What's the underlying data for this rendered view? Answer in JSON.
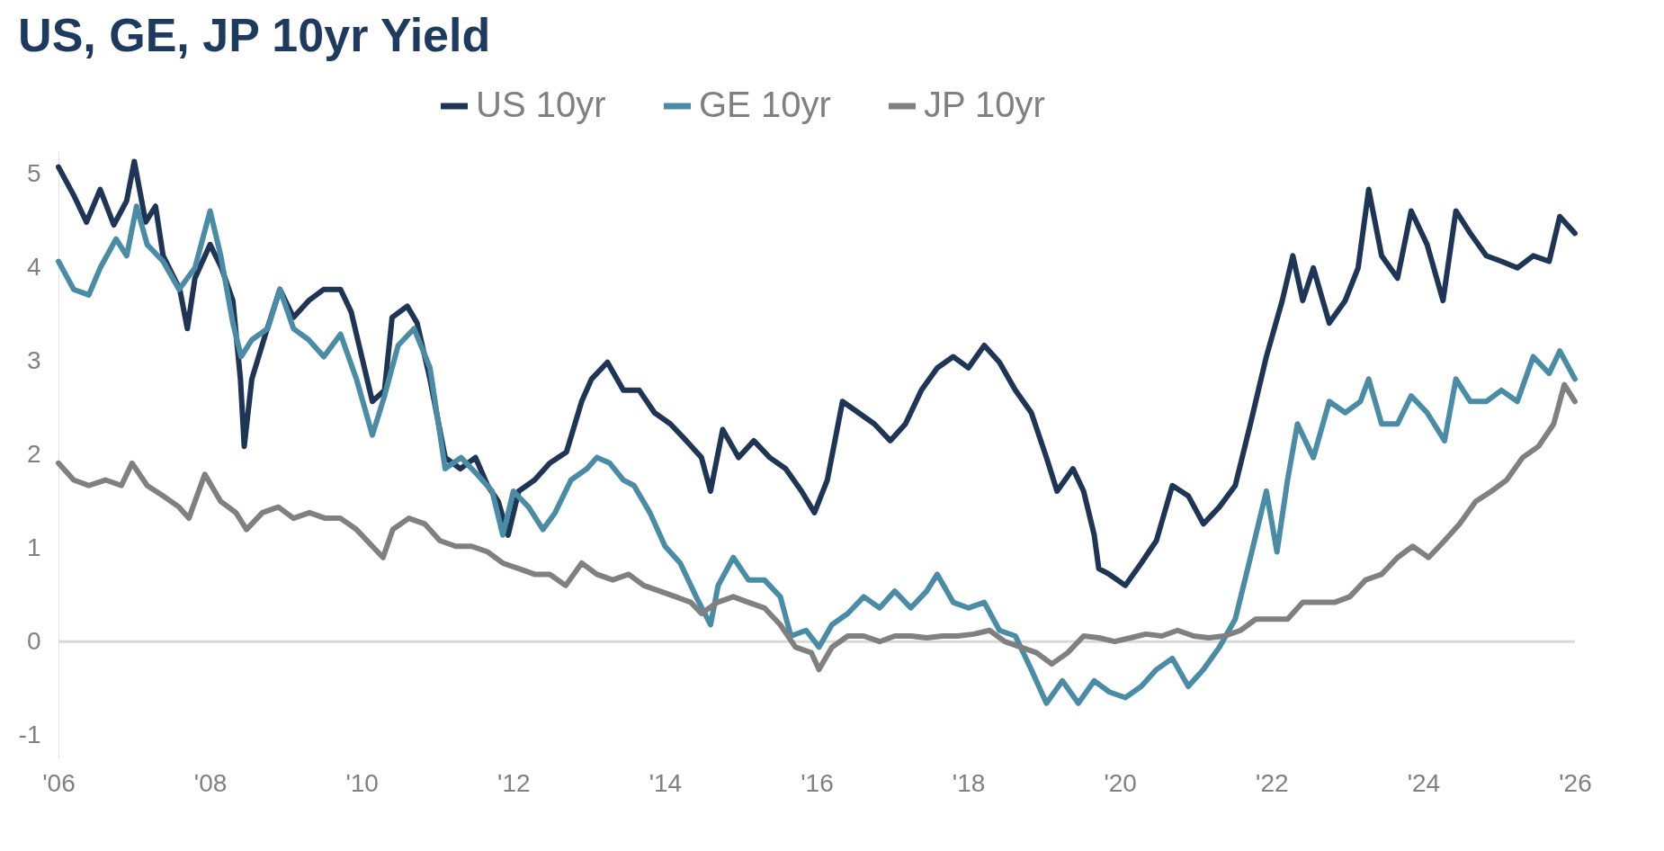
{
  "chart_data": {
    "type": "line",
    "title": "US, GE, JP 10yr Yield",
    "xlim": [
      2006,
      2026
    ],
    "ylim": [
      -1.25,
      5.25
    ],
    "xticks": [
      {
        "value": 2006,
        "label": "'06"
      },
      {
        "value": 2008,
        "label": "'08"
      },
      {
        "value": 2010,
        "label": "'10"
      },
      {
        "value": 2012,
        "label": "'12"
      },
      {
        "value": 2014,
        "label": "'14"
      },
      {
        "value": 2016,
        "label": "'16"
      },
      {
        "value": 2018,
        "label": "'18"
      },
      {
        "value": 2020,
        "label": "'20"
      },
      {
        "value": 2022,
        "label": "'22"
      },
      {
        "value": 2024,
        "label": "'24"
      },
      {
        "value": 2026,
        "label": "'26"
      }
    ],
    "yticks": [
      -1,
      0,
      1,
      2,
      3,
      4,
      5
    ],
    "grid": false,
    "legend": "top",
    "marker": "none",
    "line_style": "solid",
    "ref_lines": [
      {
        "axis": "y",
        "value": 0,
        "color": "#d9d9d9"
      }
    ],
    "series": [
      {
        "name": "US 10yr",
        "color": "#1f3556",
        "x": [
          2006.0,
          2006.2,
          2006.37,
          2006.55,
          2006.73,
          2006.9,
          2007.0,
          2007.15,
          2007.28,
          2007.38,
          2007.6,
          2007.7,
          2007.8,
          2008.0,
          2008.15,
          2008.3,
          2008.4,
          2008.45,
          2008.55,
          2008.73,
          2008.92,
          2009.1,
          2009.3,
          2009.5,
          2009.72,
          2009.86,
          2010.0,
          2010.14,
          2010.3,
          2010.4,
          2010.6,
          2010.73,
          2010.9,
          2011.1,
          2011.3,
          2011.5,
          2011.66,
          2011.8,
          2011.93,
          2012.07,
          2012.28,
          2012.48,
          2012.7,
          2012.9,
          2013.03,
          2013.24,
          2013.45,
          2013.66,
          2013.86,
          2014.07,
          2014.28,
          2014.48,
          2014.6,
          2014.76,
          2014.97,
          2015.17,
          2015.38,
          2015.59,
          2015.8,
          2015.97,
          2016.14,
          2016.34,
          2016.55,
          2016.76,
          2016.97,
          2017.17,
          2017.38,
          2017.59,
          2017.8,
          2018.0,
          2018.21,
          2018.41,
          2018.62,
          2018.83,
          2019.03,
          2019.17,
          2019.38,
          2019.52,
          2019.66,
          2019.72,
          2019.86,
          2020.07,
          2020.28,
          2020.48,
          2020.69,
          2020.9,
          2021.1,
          2021.31,
          2021.52,
          2021.72,
          2021.93,
          2022.14,
          2022.28,
          2022.41,
          2022.55,
          2022.76,
          2022.97,
          2023.14,
          2023.28,
          2023.45,
          2023.66,
          2023.84,
          2024.05,
          2024.26,
          2024.43,
          2024.62,
          2024.83,
          2025.03,
          2025.24,
          2025.45,
          2025.66,
          2025.8,
          2026.0
        ],
        "values": [
          5.08,
          4.78,
          4.49,
          4.84,
          4.46,
          4.72,
          5.14,
          4.49,
          4.66,
          4.13,
          3.77,
          3.35,
          3.89,
          4.25,
          4.0,
          3.65,
          2.81,
          2.09,
          2.81,
          3.29,
          3.77,
          3.47,
          3.65,
          3.77,
          3.77,
          3.53,
          3.05,
          2.57,
          2.69,
          3.47,
          3.59,
          3.41,
          2.81,
          1.97,
          1.85,
          1.97,
          1.67,
          1.5,
          1.14,
          1.61,
          1.73,
          1.91,
          2.03,
          2.57,
          2.81,
          2.99,
          2.69,
          2.69,
          2.45,
          2.33,
          2.15,
          1.97,
          1.61,
          2.27,
          1.97,
          2.15,
          1.97,
          1.85,
          1.61,
          1.38,
          1.73,
          2.57,
          2.45,
          2.33,
          2.15,
          2.33,
          2.69,
          2.93,
          3.05,
          2.93,
          3.17,
          2.99,
          2.69,
          2.45,
          1.97,
          1.61,
          1.85,
          1.61,
          1.14,
          0.78,
          0.72,
          0.6,
          0.84,
          1.08,
          1.67,
          1.56,
          1.26,
          1.44,
          1.67,
          2.33,
          3.05,
          3.65,
          4.13,
          3.65,
          4.0,
          3.41,
          3.65,
          4.0,
          4.84,
          4.13,
          3.89,
          4.61,
          4.25,
          3.65,
          4.61,
          4.37,
          4.13,
          4.07,
          4.0,
          4.13,
          4.07,
          4.55,
          4.37
        ]
      },
      {
        "name": "GE 10yr",
        "color": "#4a8ca5",
        "x": [
          2006.0,
          2006.2,
          2006.4,
          2006.55,
          2006.76,
          2006.9,
          2007.03,
          2007.17,
          2007.38,
          2007.59,
          2007.8,
          2008.0,
          2008.14,
          2008.3,
          2008.41,
          2008.55,
          2008.76,
          2008.92,
          2009.1,
          2009.3,
          2009.5,
          2009.72,
          2009.93,
          2010.14,
          2010.3,
          2010.48,
          2010.69,
          2010.9,
          2011.1,
          2011.31,
          2011.52,
          2011.72,
          2011.86,
          2012.0,
          2012.2,
          2012.39,
          2012.55,
          2012.76,
          2012.97,
          2013.1,
          2013.27,
          2013.45,
          2013.59,
          2013.8,
          2014.0,
          2014.2,
          2014.41,
          2014.6,
          2014.7,
          2014.9,
          2015.1,
          2015.31,
          2015.52,
          2015.66,
          2015.86,
          2016.03,
          2016.2,
          2016.41,
          2016.62,
          2016.83,
          2017.03,
          2017.24,
          2017.45,
          2017.59,
          2017.8,
          2018.0,
          2018.21,
          2018.41,
          2018.62,
          2018.83,
          2019.03,
          2019.24,
          2019.45,
          2019.66,
          2019.86,
          2020.07,
          2020.28,
          2020.48,
          2020.69,
          2020.9,
          2021.1,
          2021.31,
          2021.52,
          2021.72,
          2021.93,
          2022.07,
          2022.21,
          2022.34,
          2022.55,
          2022.76,
          2022.97,
          2023.17,
          2023.28,
          2023.45,
          2023.66,
          2023.84,
          2024.05,
          2024.28,
          2024.43,
          2024.62,
          2024.83,
          2025.03,
          2025.24,
          2025.45,
          2025.66,
          2025.8,
          2026.0
        ],
        "values": [
          4.07,
          3.77,
          3.71,
          4.0,
          4.31,
          4.13,
          4.66,
          4.25,
          4.07,
          3.77,
          4.0,
          4.61,
          4.13,
          3.41,
          3.05,
          3.23,
          3.35,
          3.77,
          3.35,
          3.23,
          3.05,
          3.29,
          2.81,
          2.21,
          2.63,
          3.17,
          3.35,
          2.93,
          1.85,
          1.97,
          1.79,
          1.61,
          1.14,
          1.61,
          1.44,
          1.2,
          1.38,
          1.73,
          1.85,
          1.97,
          1.91,
          1.73,
          1.67,
          1.38,
          1.02,
          0.84,
          0.48,
          0.18,
          0.6,
          0.9,
          0.66,
          0.66,
          0.48,
          0.06,
          0.12,
          -0.06,
          0.18,
          0.3,
          0.48,
          0.36,
          0.54,
          0.36,
          0.54,
          0.72,
          0.42,
          0.36,
          0.42,
          0.12,
          0.06,
          -0.3,
          -0.66,
          -0.42,
          -0.66,
          -0.42,
          -0.54,
          -0.6,
          -0.48,
          -0.3,
          -0.18,
          -0.48,
          -0.3,
          -0.06,
          0.24,
          0.9,
          1.61,
          0.96,
          1.73,
          2.33,
          1.97,
          2.57,
          2.45,
          2.57,
          2.81,
          2.33,
          2.33,
          2.63,
          2.45,
          2.15,
          2.81,
          2.57,
          2.57,
          2.69,
          2.57,
          3.05,
          2.87,
          3.11,
          2.81
        ]
      },
      {
        "name": "JP 10yr",
        "color": "#808080",
        "x": [
          2006.0,
          2006.2,
          2006.4,
          2006.62,
          2006.83,
          2006.97,
          2007.17,
          2007.38,
          2007.59,
          2007.72,
          2007.93,
          2008.14,
          2008.34,
          2008.48,
          2008.69,
          2008.9,
          2009.1,
          2009.31,
          2009.52,
          2009.72,
          2009.93,
          2010.14,
          2010.28,
          2010.41,
          2010.62,
          2010.83,
          2011.03,
          2011.24,
          2011.45,
          2011.66,
          2011.86,
          2012.07,
          2012.28,
          2012.48,
          2012.69,
          2012.9,
          2013.1,
          2013.31,
          2013.52,
          2013.72,
          2013.93,
          2014.14,
          2014.34,
          2014.48,
          2014.69,
          2014.9,
          2015.1,
          2015.31,
          2015.52,
          2015.72,
          2015.93,
          2016.03,
          2016.2,
          2016.41,
          2016.62,
          2016.83,
          2017.03,
          2017.24,
          2017.45,
          2017.66,
          2017.86,
          2018.07,
          2018.28,
          2018.48,
          2018.69,
          2018.9,
          2019.1,
          2019.31,
          2019.52,
          2019.72,
          2019.93,
          2020.14,
          2020.34,
          2020.55,
          2020.76,
          2020.97,
          2021.17,
          2021.38,
          2021.59,
          2021.79,
          2022.0,
          2022.21,
          2022.41,
          2022.62,
          2022.83,
          2023.03,
          2023.24,
          2023.45,
          2023.66,
          2023.86,
          2024.07,
          2024.28,
          2024.48,
          2024.69,
          2024.9,
          2025.1,
          2025.31,
          2025.52,
          2025.72,
          2025.86,
          2026.0
        ],
        "values": [
          1.91,
          1.73,
          1.67,
          1.73,
          1.67,
          1.91,
          1.67,
          1.56,
          1.44,
          1.32,
          1.79,
          1.5,
          1.38,
          1.2,
          1.38,
          1.44,
          1.32,
          1.38,
          1.32,
          1.32,
          1.2,
          1.02,
          0.9,
          1.2,
          1.32,
          1.26,
          1.08,
          1.02,
          1.02,
          0.96,
          0.84,
          0.78,
          0.72,
          0.72,
          0.6,
          0.84,
          0.72,
          0.66,
          0.72,
          0.6,
          0.54,
          0.48,
          0.42,
          0.3,
          0.42,
          0.48,
          0.42,
          0.36,
          0.18,
          -0.06,
          -0.12,
          -0.3,
          -0.06,
          0.06,
          0.06,
          0.0,
          0.06,
          0.06,
          0.04,
          0.06,
          0.06,
          0.08,
          0.12,
          0.0,
          -0.06,
          -0.12,
          -0.24,
          -0.12,
          0.06,
          0.04,
          0.0,
          0.04,
          0.08,
          0.06,
          0.12,
          0.06,
          0.04,
          0.06,
          0.12,
          0.24,
          0.24,
          0.24,
          0.42,
          0.42,
          0.42,
          0.48,
          0.66,
          0.72,
          0.9,
          1.02,
          0.9,
          1.08,
          1.26,
          1.5,
          1.61,
          1.73,
          1.97,
          2.09,
          2.33,
          2.75,
          2.57
        ]
      }
    ]
  }
}
